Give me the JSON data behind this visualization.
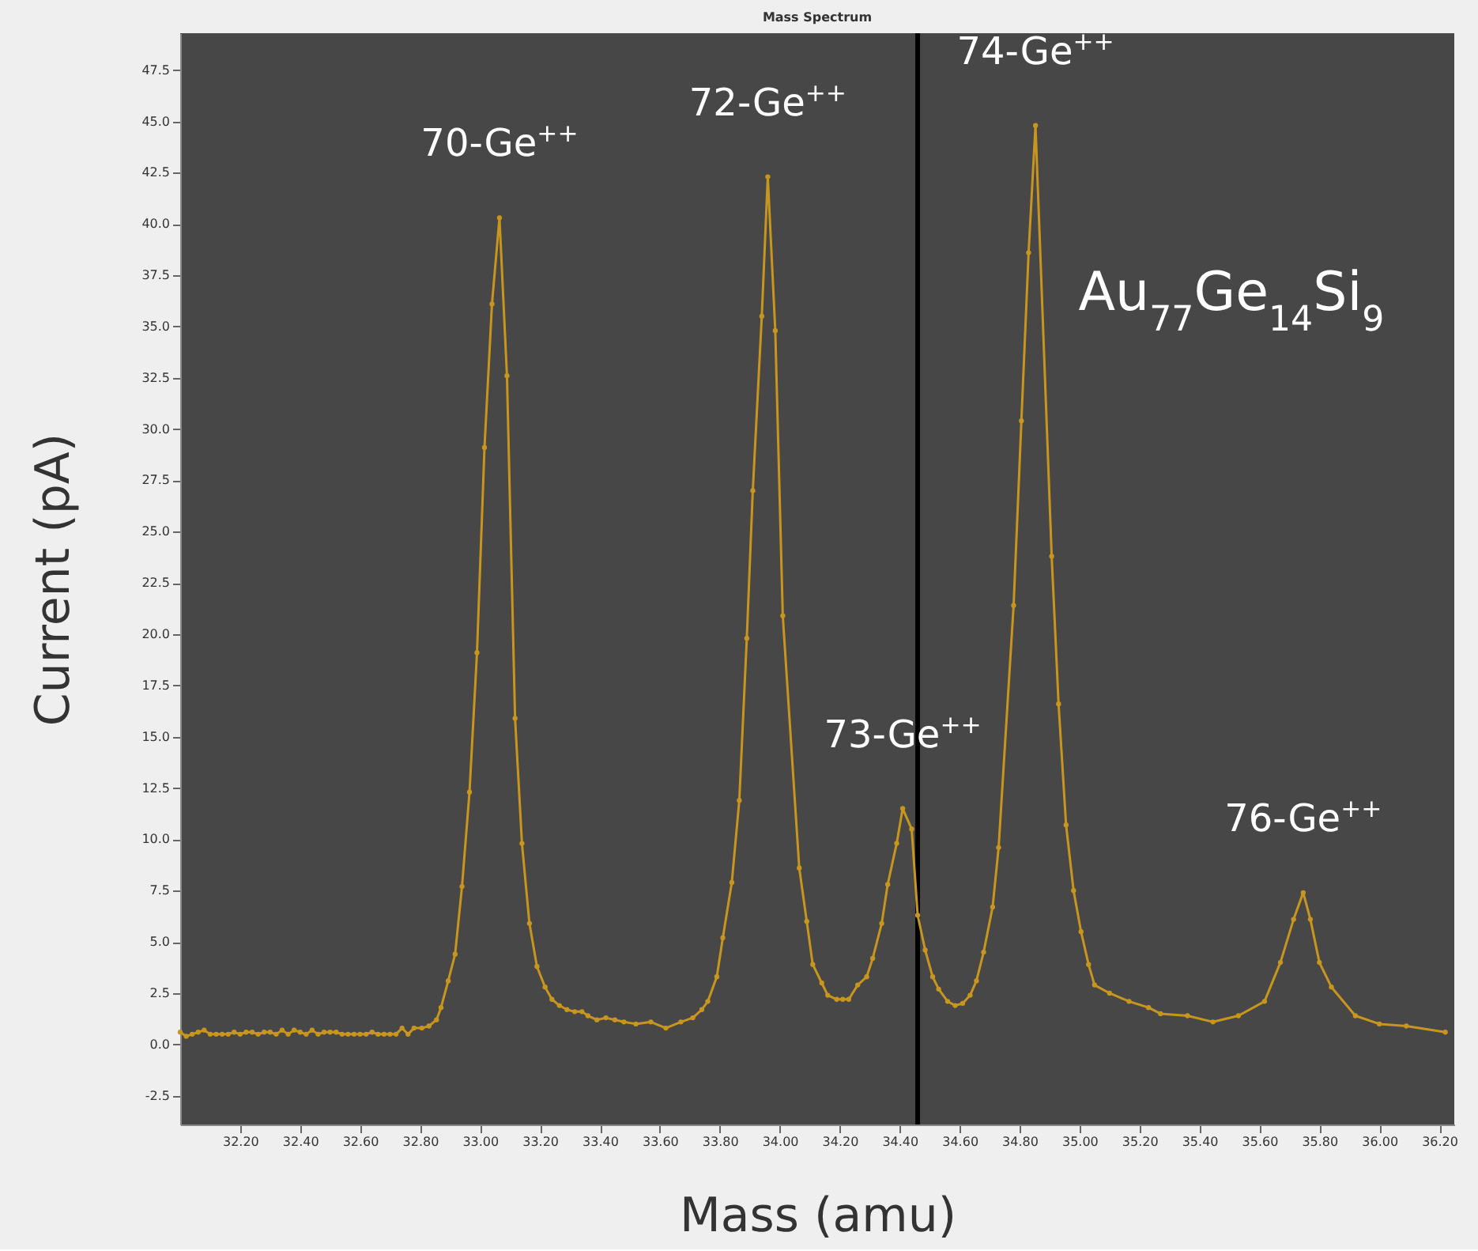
{
  "chart_data": {
    "type": "line",
    "title": "Mass Spectrum",
    "xlabel": "Mass (amu)",
    "ylabel": "Current (pA)",
    "xlim": [
      32.0,
      36.25
    ],
    "ylim": [
      -3.9,
      49.3
    ],
    "xticks": [
      {
        "value": 32.2,
        "label": "32.20"
      },
      {
        "value": 32.4,
        "label": "32.40"
      },
      {
        "value": 32.6,
        "label": "32.60"
      },
      {
        "value": 32.8,
        "label": "32.80"
      },
      {
        "value": 33.0,
        "label": "33.00"
      },
      {
        "value": 33.2,
        "label": "33.20"
      },
      {
        "value": 33.4,
        "label": "33.40"
      },
      {
        "value": 33.6,
        "label": "33.60"
      },
      {
        "value": 33.8,
        "label": "33.80"
      },
      {
        "value": 34.0,
        "label": "34.00"
      },
      {
        "value": 34.2,
        "label": "34.20"
      },
      {
        "value": 34.4,
        "label": "34.40"
      },
      {
        "value": 34.6,
        "label": "34.60"
      },
      {
        "value": 34.8,
        "label": "34.80"
      },
      {
        "value": 35.0,
        "label": "35.00"
      },
      {
        "value": 35.2,
        "label": "35.20"
      },
      {
        "value": 35.4,
        "label": "35.40"
      },
      {
        "value": 35.6,
        "label": "35.60"
      },
      {
        "value": 35.8,
        "label": "35.80"
      },
      {
        "value": 36.0,
        "label": "36.00"
      },
      {
        "value": 36.2,
        "label": "36.20"
      }
    ],
    "yticks": [
      {
        "value": -2.5,
        "label": "-2.5"
      },
      {
        "value": 0,
        "label": "0.0"
      },
      2.5,
      {
        "value": 5,
        "label": "5.0"
      },
      7.5,
      {
        "value": 10,
        "label": "10.0"
      },
      12.5,
      {
        "value": 15,
        "label": "15.0"
      },
      17.5,
      {
        "value": 20,
        "label": "20.0"
      },
      22.5,
      {
        "value": 25,
        "label": "25.0"
      },
      27.5,
      {
        "value": 30,
        "label": "30.0"
      },
      32.5,
      {
        "value": 35,
        "label": "35.0"
      },
      37.5,
      {
        "value": 40,
        "label": "40.0"
      },
      42.5,
      {
        "value": 45,
        "label": "45.0"
      },
      47.5
    ],
    "grid": false,
    "marker": "circle",
    "line_style": "solid",
    "ref_lines": [
      {
        "axis": "x",
        "value": 34.46,
        "color": "#000000"
      }
    ],
    "annotations": [
      {
        "text": "70-Ge$^{++}$",
        "x": 33.065,
        "y": 40.3
      },
      {
        "text": "72-Ge$^{++}$",
        "x": 33.96,
        "y": 42.3
      },
      {
        "text": "73-Ge$^{++}$",
        "x": 34.41,
        "y": 11.5
      },
      {
        "text": "74-Ge$^{++}$",
        "x": 34.853,
        "y": 44.8
      },
      {
        "text": "76-Ge$^{++}$",
        "x": 35.746,
        "y": 7.4
      },
      "Au$_{77}$Ge$_{14}$Si$_{9}$"
    ],
    "series": [
      {
        "color": "#c8961e",
        "x": [
          32.0,
          32.02,
          32.04,
          32.06,
          32.08,
          32.1,
          32.12,
          32.14,
          32.16,
          32.18,
          32.2,
          32.22,
          32.24,
          32.26,
          32.28,
          32.3,
          32.32,
          32.34,
          32.36,
          32.38,
          32.4,
          32.42,
          32.44,
          32.46,
          32.48,
          32.5,
          32.52,
          32.54,
          32.56,
          32.58,
          32.6,
          32.62,
          32.64,
          32.66,
          32.68,
          32.7,
          32.72,
          32.74,
          32.76,
          32.78,
          32.806,
          32.83,
          32.855,
          32.87,
          32.894,
          32.917,
          32.94,
          32.965,
          32.99,
          33.015,
          33.04,
          33.065,
          33.09,
          33.117,
          33.14,
          33.165,
          33.19,
          33.217,
          33.24,
          33.265,
          33.29,
          33.316,
          33.34,
          33.36,
          33.39,
          33.42,
          33.45,
          33.48,
          33.52,
          33.57,
          33.62,
          33.67,
          33.71,
          33.74,
          33.76,
          33.79,
          33.81,
          33.84,
          33.865,
          33.89,
          33.91,
          33.94,
          33.96,
          33.985,
          34.01,
          34.065,
          34.09,
          34.11,
          34.14,
          34.16,
          34.19,
          34.21,
          34.23,
          34.26,
          34.29,
          34.31,
          34.34,
          34.36,
          34.39,
          34.41,
          34.44,
          34.46,
          34.485,
          34.51,
          34.53,
          34.56,
          34.585,
          34.61,
          34.635,
          34.656,
          34.68,
          34.71,
          34.73,
          34.78,
          34.806,
          34.83,
          34.853,
          34.907,
          34.93,
          34.955,
          34.98,
          35.005,
          35.03,
          35.05,
          35.1,
          35.165,
          35.23,
          35.27,
          35.36,
          35.445,
          35.53,
          35.617,
          35.67,
          35.714,
          35.746,
          35.77,
          35.8,
          35.84,
          35.92,
          36.0,
          36.09,
          36.22
        ],
        "values": [
          0.6,
          0.4,
          0.5,
          0.6,
          0.7,
          0.5,
          0.5,
          0.5,
          0.5,
          0.6,
          0.5,
          0.6,
          0.6,
          0.5,
          0.6,
          0.6,
          0.5,
          0.7,
          0.5,
          0.7,
          0.6,
          0.5,
          0.7,
          0.5,
          0.6,
          0.6,
          0.6,
          0.5,
          0.5,
          0.5,
          0.5,
          0.5,
          0.6,
          0.5,
          0.5,
          0.5,
          0.5,
          0.8,
          0.5,
          0.8,
          0.8,
          0.9,
          1.2,
          1.8,
          3.1,
          4.4,
          7.7,
          12.3,
          19.1,
          29.1,
          36.1,
          40.3,
          32.6,
          15.9,
          9.8,
          5.9,
          3.8,
          2.8,
          2.2,
          1.9,
          1.7,
          1.6,
          1.6,
          1.4,
          1.2,
          1.3,
          1.2,
          1.1,
          1.0,
          1.1,
          0.8,
          1.1,
          1.3,
          1.7,
          2.1,
          3.3,
          5.2,
          7.9,
          11.9,
          19.8,
          27.0,
          35.5,
          42.3,
          34.8,
          20.9,
          8.6,
          6.0,
          3.9,
          3.0,
          2.4,
          2.2,
          2.2,
          2.2,
          2.9,
          3.3,
          4.2,
          5.9,
          7.8,
          9.8,
          11.5,
          10.5,
          6.3,
          4.6,
          3.3,
          2.7,
          2.1,
          1.9,
          2.0,
          2.4,
          3.1,
          4.5,
          6.7,
          9.6,
          21.4,
          30.4,
          38.6,
          44.8,
          23.8,
          16.6,
          10.7,
          7.5,
          5.5,
          3.9,
          2.9,
          2.5,
          2.1,
          1.8,
          1.5,
          1.4,
          1.1,
          1.4,
          2.1,
          4.0,
          6.1,
          7.4,
          6.1,
          4.0,
          2.8,
          1.4,
          1.0,
          0.9,
          0.6
        ]
      }
    ]
  }
}
